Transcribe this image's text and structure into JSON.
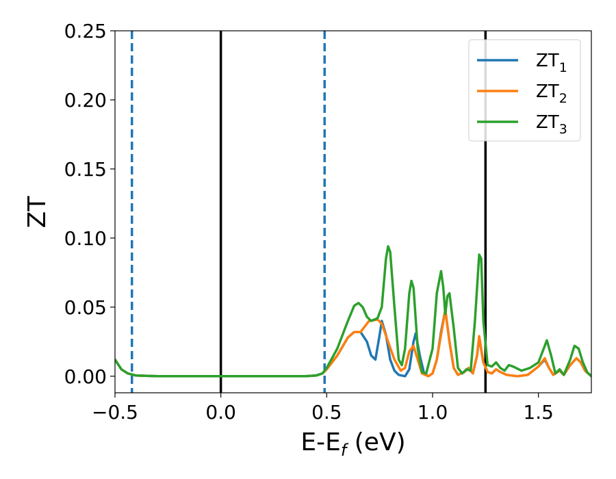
{
  "chart_data": {
    "type": "line",
    "title": "",
    "xlabel": {
      "main": "E-E",
      "sub": "f",
      "suffix": " (eV)"
    },
    "ylabel": "ZT",
    "xlim": [
      -0.5,
      1.75
    ],
    "ylim": [
      -0.012,
      0.25
    ],
    "xticks": [
      -0.5,
      0.0,
      0.5,
      1.0,
      1.5
    ],
    "xtick_labels": [
      "−0.5",
      "0.0",
      "0.5",
      "1.0",
      "1.5"
    ],
    "yticks": [
      0.0,
      0.05,
      0.1,
      0.15,
      0.2,
      0.25
    ],
    "ytick_labels": [
      "0.00",
      "0.05",
      "0.10",
      "0.15",
      "0.20",
      "0.25"
    ],
    "grid": false,
    "legend_position": "top-right",
    "vertical_lines": [
      {
        "x": -0.42,
        "style": "dashed",
        "color": "#1f77b4"
      },
      {
        "x": 0.0,
        "style": "solid",
        "color": "#000000"
      },
      {
        "x": 0.49,
        "style": "dashed",
        "color": "#1f77b4"
      },
      {
        "x": 1.25,
        "style": "solid",
        "color": "#000000"
      }
    ],
    "series": [
      {
        "name": "ZT",
        "sub": "1",
        "color": "#1f77b4",
        "points": [
          [
            -0.5,
            0.012
          ],
          [
            -0.47,
            0.005
          ],
          [
            -0.44,
            0.002
          ],
          [
            -0.4,
            0.0005
          ],
          [
            -0.3,
            0.0
          ],
          [
            0.0,
            0.0
          ],
          [
            0.4,
            0.0
          ],
          [
            0.45,
            0.0005
          ],
          [
            0.48,
            0.002
          ],
          [
            0.5,
            0.005
          ],
          [
            0.55,
            0.015
          ],
          [
            0.6,
            0.028
          ],
          [
            0.63,
            0.032
          ],
          [
            0.66,
            0.032
          ],
          [
            0.69,
            0.025
          ],
          [
            0.71,
            0.015
          ],
          [
            0.73,
            0.012
          ],
          [
            0.75,
            0.03
          ],
          [
            0.76,
            0.04
          ],
          [
            0.78,
            0.03
          ],
          [
            0.8,
            0.012
          ],
          [
            0.82,
            0.004
          ],
          [
            0.84,
            0.001
          ],
          [
            0.87,
            0.0
          ],
          [
            0.89,
            0.005
          ],
          [
            0.91,
            0.025
          ],
          [
            0.92,
            0.031
          ],
          [
            0.94,
            0.015
          ],
          [
            0.96,
            0.002
          ],
          [
            0.98,
            0.0
          ],
          [
            1.0,
            0.002
          ],
          [
            1.02,
            0.012
          ],
          [
            1.04,
            0.032
          ],
          [
            1.06,
            0.048
          ],
          [
            1.08,
            0.025
          ],
          [
            1.1,
            0.006
          ],
          [
            1.12,
            0.001
          ],
          [
            1.15,
            0.003
          ],
          [
            1.17,
            0.006
          ],
          [
            1.19,
            0.002
          ],
          [
            1.21,
            0.015
          ],
          [
            1.22,
            0.028
          ],
          [
            1.24,
            0.01
          ],
          [
            1.26,
            0.003
          ],
          [
            1.28,
            0.002
          ],
          [
            1.3,
            0.005
          ],
          [
            1.32,
            0.003
          ],
          [
            1.35,
            0.001
          ],
          [
            1.4,
            0.0
          ],
          [
            1.45,
            0.001
          ],
          [
            1.5,
            0.007
          ],
          [
            1.53,
            0.012
          ],
          [
            1.55,
            0.006
          ],
          [
            1.57,
            0.001
          ],
          [
            1.6,
            0.004
          ],
          [
            1.62,
            0.001
          ],
          [
            1.65,
            0.008
          ],
          [
            1.68,
            0.013
          ],
          [
            1.7,
            0.01
          ],
          [
            1.72,
            0.004
          ],
          [
            1.75,
            0.0
          ]
        ]
      },
      {
        "name": "ZT",
        "sub": "2",
        "color": "#ff7f0e",
        "points": [
          [
            -0.5,
            0.012
          ],
          [
            -0.47,
            0.005
          ],
          [
            -0.44,
            0.002
          ],
          [
            -0.4,
            0.0005
          ],
          [
            -0.3,
            0.0
          ],
          [
            0.0,
            0.0
          ],
          [
            0.4,
            0.0
          ],
          [
            0.45,
            0.0005
          ],
          [
            0.48,
            0.002
          ],
          [
            0.5,
            0.005
          ],
          [
            0.55,
            0.015
          ],
          [
            0.6,
            0.028
          ],
          [
            0.63,
            0.032
          ],
          [
            0.66,
            0.032
          ],
          [
            0.68,
            0.036
          ],
          [
            0.7,
            0.04
          ],
          [
            0.74,
            0.041
          ],
          [
            0.76,
            0.038
          ],
          [
            0.79,
            0.025
          ],
          [
            0.82,
            0.012
          ],
          [
            0.85,
            0.004
          ],
          [
            0.87,
            0.006
          ],
          [
            0.89,
            0.018
          ],
          [
            0.91,
            0.022
          ],
          [
            0.93,
            0.012
          ],
          [
            0.95,
            0.002
          ],
          [
            0.98,
            0.0
          ],
          [
            1.0,
            0.002
          ],
          [
            1.02,
            0.012
          ],
          [
            1.04,
            0.03
          ],
          [
            1.06,
            0.048
          ],
          [
            1.08,
            0.025
          ],
          [
            1.1,
            0.006
          ],
          [
            1.12,
            0.001
          ],
          [
            1.15,
            0.003
          ],
          [
            1.17,
            0.006
          ],
          [
            1.19,
            0.002
          ],
          [
            1.21,
            0.015
          ],
          [
            1.22,
            0.029
          ],
          [
            1.24,
            0.01
          ],
          [
            1.26,
            0.003
          ],
          [
            1.28,
            0.002
          ],
          [
            1.3,
            0.005
          ],
          [
            1.32,
            0.003
          ],
          [
            1.35,
            0.001
          ],
          [
            1.4,
            0.0
          ],
          [
            1.45,
            0.001
          ],
          [
            1.5,
            0.007
          ],
          [
            1.53,
            0.013
          ],
          [
            1.55,
            0.006
          ],
          [
            1.57,
            0.001
          ],
          [
            1.6,
            0.004
          ],
          [
            1.62,
            0.001
          ],
          [
            1.65,
            0.008
          ],
          [
            1.68,
            0.013
          ],
          [
            1.7,
            0.01
          ],
          [
            1.72,
            0.004
          ],
          [
            1.75,
            0.0
          ]
        ]
      },
      {
        "name": "ZT",
        "sub": "3",
        "color": "#2ca02c",
        "points": [
          [
            -0.5,
            0.012
          ],
          [
            -0.47,
            0.005
          ],
          [
            -0.44,
            0.002
          ],
          [
            -0.4,
            0.0005
          ],
          [
            -0.3,
            0.0
          ],
          [
            0.0,
            0.0
          ],
          [
            0.4,
            0.0
          ],
          [
            0.45,
            0.0005
          ],
          [
            0.48,
            0.002
          ],
          [
            0.5,
            0.006
          ],
          [
            0.55,
            0.02
          ],
          [
            0.6,
            0.04
          ],
          [
            0.63,
            0.051
          ],
          [
            0.65,
            0.053
          ],
          [
            0.67,
            0.05
          ],
          [
            0.69,
            0.043
          ],
          [
            0.71,
            0.04
          ],
          [
            0.74,
            0.042
          ],
          [
            0.76,
            0.05
          ],
          [
            0.78,
            0.085
          ],
          [
            0.79,
            0.094
          ],
          [
            0.8,
            0.09
          ],
          [
            0.82,
            0.05
          ],
          [
            0.84,
            0.012
          ],
          [
            0.855,
            0.008
          ],
          [
            0.87,
            0.02
          ],
          [
            0.89,
            0.06
          ],
          [
            0.9,
            0.069
          ],
          [
            0.91,
            0.064
          ],
          [
            0.93,
            0.02
          ],
          [
            0.95,
            0.003
          ],
          [
            0.97,
            0.002
          ],
          [
            1.0,
            0.02
          ],
          [
            1.02,
            0.06
          ],
          [
            1.04,
            0.076
          ],
          [
            1.05,
            0.065
          ],
          [
            1.06,
            0.045
          ],
          [
            1.07,
            0.058
          ],
          [
            1.08,
            0.06
          ],
          [
            1.1,
            0.035
          ],
          [
            1.12,
            0.006
          ],
          [
            1.14,
            0.002
          ],
          [
            1.16,
            0.005
          ],
          [
            1.18,
            0.004
          ],
          [
            1.2,
            0.04
          ],
          [
            1.22,
            0.088
          ],
          [
            1.23,
            0.085
          ],
          [
            1.24,
            0.04
          ],
          [
            1.26,
            0.008
          ],
          [
            1.28,
            0.007
          ],
          [
            1.3,
            0.01
          ],
          [
            1.32,
            0.006
          ],
          [
            1.34,
            0.004
          ],
          [
            1.36,
            0.008
          ],
          [
            1.38,
            0.007
          ],
          [
            1.42,
            0.004
          ],
          [
            1.46,
            0.006
          ],
          [
            1.5,
            0.01
          ],
          [
            1.52,
            0.018
          ],
          [
            1.54,
            0.026
          ],
          [
            1.56,
            0.015
          ],
          [
            1.58,
            0.002
          ],
          [
            1.6,
            0.005
          ],
          [
            1.62,
            0.001
          ],
          [
            1.65,
            0.012
          ],
          [
            1.67,
            0.022
          ],
          [
            1.69,
            0.02
          ],
          [
            1.71,
            0.01
          ],
          [
            1.73,
            0.003
          ],
          [
            1.75,
            0.0
          ]
        ]
      }
    ]
  }
}
